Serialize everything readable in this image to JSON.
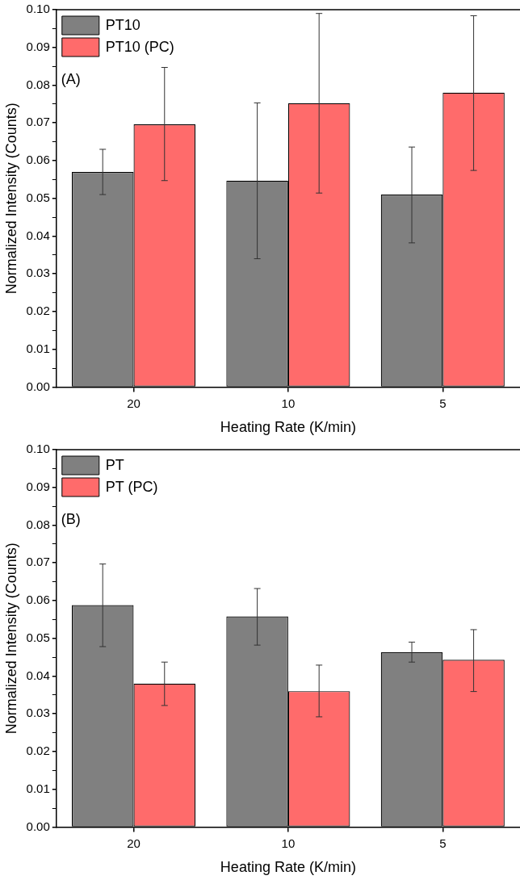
{
  "chart_data": [
    {
      "type": "bar",
      "categories": [
        "20",
        "10",
        "5"
      ],
      "xlabel": "Heating Rate (K/min)",
      "ylabel": "Normalized Intensity (Counts)",
      "annotations": [
        "(A)"
      ],
      "legend": "top left",
      "grid": false,
      "ylim": [
        0,
        0.1
      ],
      "yticks": [
        {
          "value": 0,
          "label": "0.00"
        },
        {
          "value": 0.005,
          "label": null
        },
        0.01,
        {
          "value": 0.015,
          "label": null
        },
        0.02,
        {
          "value": 0.025,
          "label": null
        },
        0.03,
        {
          "value": 0.035,
          "label": null
        },
        0.04,
        {
          "value": 0.045,
          "label": null
        },
        0.05,
        {
          "value": 0.055,
          "label": null
        },
        0.06,
        {
          "value": 0.065,
          "label": null
        },
        0.07,
        {
          "value": 0.075,
          "label": null
        },
        0.08,
        {
          "value": 0.085,
          "label": null
        },
        0.09,
        {
          "value": 0.095,
          "label": null
        },
        {
          "value": 0.1,
          "label": "0.10"
        }
      ],
      "series": [
        {
          "name": "PT10",
          "color": "#808080",
          "values": [
            0.057,
            0.0547,
            0.051
          ],
          "errors": [
            [
              0.051,
              0.063
            ],
            [
              0.034,
              0.0753
            ],
            [
              0.0382,
              0.0636
            ]
          ]
        },
        {
          "name": "PT10 (PC)",
          "color": "#ff6b6b",
          "values": [
            0.0696,
            0.0752,
            0.078
          ],
          "errors": [
            [
              0.0547,
              0.0847
            ],
            [
              0.0514,
              0.099
            ],
            [
              0.0574,
              0.0984
            ]
          ]
        }
      ]
    },
    {
      "type": "bar",
      "categories": [
        "20",
        "10",
        "5"
      ],
      "xlabel": "Heating Rate (K/min)",
      "ylabel": "Normalized Intensity (Counts)",
      "annotations": [
        "(B)"
      ],
      "legend": "top left",
      "grid": false,
      "ylim": [
        0,
        0.1
      ],
      "yticks": [
        {
          "value": 0,
          "label": "0.00"
        },
        {
          "value": 0.005,
          "label": null
        },
        0.01,
        {
          "value": 0.015,
          "label": null
        },
        0.02,
        {
          "value": 0.025,
          "label": null
        },
        0.03,
        {
          "value": 0.035,
          "label": null
        },
        0.04,
        {
          "value": 0.045,
          "label": null
        },
        0.05,
        {
          "value": 0.055,
          "label": null
        },
        0.06,
        {
          "value": 0.065,
          "label": null
        },
        0.07,
        {
          "value": 0.075,
          "label": null
        },
        0.08,
        {
          "value": 0.085,
          "label": null
        },
        0.09,
        {
          "value": 0.095,
          "label": null
        },
        {
          "value": 0.1,
          "label": "0.10"
        }
      ],
      "series": [
        {
          "name": "PT",
          "color": "#808080",
          "values": [
            0.0588,
            0.0558,
            0.0463
          ],
          "errors": [
            [
              0.0478,
              0.0697
            ],
            [
              0.0482,
              0.0632
            ],
            [
              0.0437,
              0.049
            ]
          ]
        },
        {
          "name": "PT (PC)",
          "color": "#ff6b6b",
          "values": [
            0.038,
            0.036,
            0.0443
          ],
          "errors": [
            [
              0.0322,
              0.0437
            ],
            [
              0.0292,
              0.0429
            ],
            [
              0.0359,
              0.0523
            ]
          ]
        }
      ]
    }
  ]
}
